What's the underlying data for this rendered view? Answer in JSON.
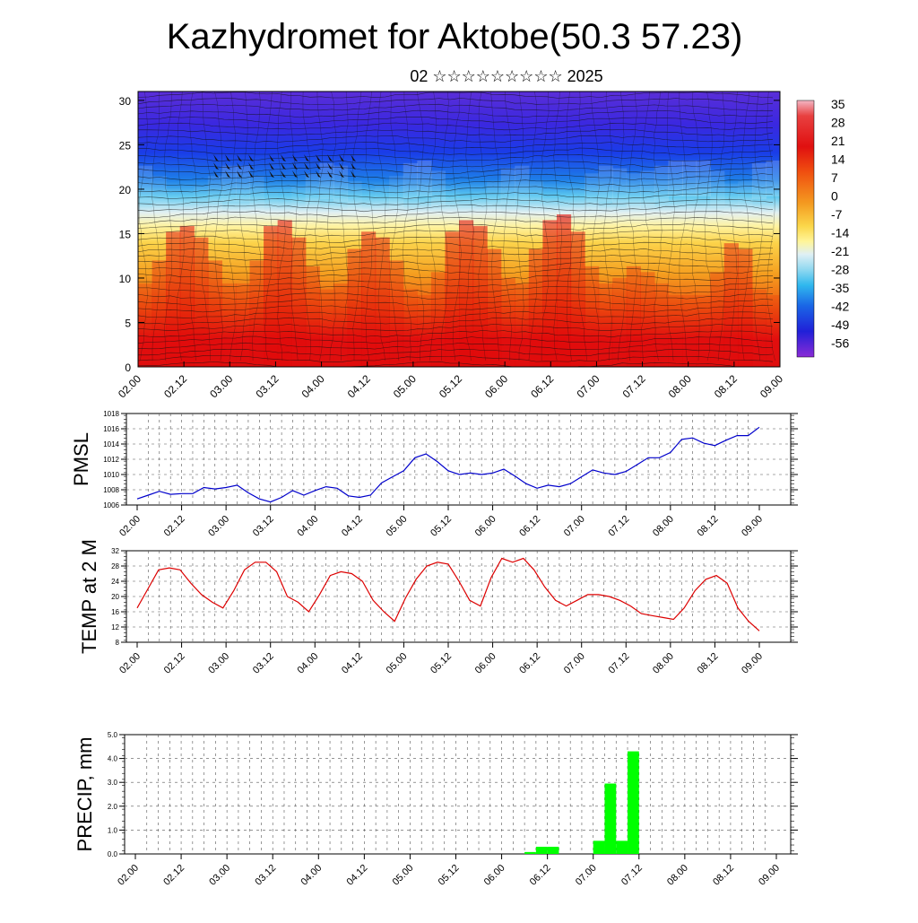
{
  "header": {
    "title": "Kazhydromet for Aktobe(50.3 57.23)",
    "subtitle": "02 ☆☆☆☆☆☆☆☆☆ 2025"
  },
  "chart_data": [
    {
      "type": "heatmap",
      "title": "Kazhydromet for Aktobe(50.3 57.23)",
      "subtitle": "02 ☆☆☆☆☆☆☆☆☆ 2025",
      "x_tick_labels": [
        "02.00",
        "02.12",
        "03.00",
        "03.12",
        "04.00",
        "04.12",
        "05.00",
        "05.12",
        "06.00",
        "06.12",
        "07.00",
        "07.12",
        "08.00",
        "08.12",
        "09.00"
      ],
      "y_ticks": [
        0,
        5,
        10,
        15,
        20,
        25,
        30
      ],
      "ylim": [
        0,
        31
      ],
      "colorbar_labels": [
        35,
        28,
        21,
        14,
        7,
        0,
        -7,
        -14,
        -21,
        -28,
        -35,
        -42,
        -49,
        -56
      ],
      "colorbar_range": [
        -63,
        38
      ],
      "surface_temperature_by_x": [
        18,
        22,
        27,
        28,
        26,
        22,
        18,
        18,
        22,
        28,
        29,
        26,
        21,
        17,
        18,
        24,
        27,
        26,
        22,
        17,
        16,
        20,
        27,
        29,
        28,
        24,
        19,
        18,
        24,
        29,
        30,
        27,
        21,
        18,
        19,
        21,
        20,
        18,
        16,
        14,
        15,
        20,
        25,
        24,
        17,
        12
      ],
      "wind_barbs": true
    },
    {
      "type": "line",
      "ylabel": "PMSL",
      "x_tick_labels": [
        "02.00",
        "02.12",
        "03.00",
        "03.12",
        "04.00",
        "04.12",
        "05.00",
        "05.12",
        "06.00",
        "06.12",
        "07.00",
        "07.12",
        "08.00",
        "08.12",
        "09.00"
      ],
      "y_ticks": [
        "1006",
        "1008",
        "1010",
        "1012",
        "1014",
        "1016",
        "1018"
      ],
      "ylim": [
        1006,
        1018
      ],
      "color": "#0000cc",
      "values": [
        1006.8,
        1007.3,
        1007.8,
        1007.4,
        1007.5,
        1007.5,
        1008.3,
        1008.1,
        1008.3,
        1008.6,
        1007.6,
        1006.8,
        1006.4,
        1007.0,
        1007.9,
        1007.3,
        1007.9,
        1008.4,
        1008.2,
        1007.2,
        1007.0,
        1007.3,
        1008.9,
        1009.7,
        1010.5,
        1012.2,
        1012.7,
        1011.7,
        1010.5,
        1010.0,
        1010.2,
        1010.0,
        1010.2,
        1010.7,
        1009.8,
        1008.8,
        1008.2,
        1008.6,
        1008.4,
        1008.8,
        1009.7,
        1010.6,
        1010.2,
        1010.0,
        1010.4,
        1011.3,
        1012.2,
        1012.2,
        1012.9,
        1014.6,
        1014.8,
        1014.1,
        1013.8,
        1014.5,
        1015.1,
        1015.1,
        1016.2
      ]
    },
    {
      "type": "line",
      "ylabel": "TEMP at 2 M",
      "x_tick_labels": [
        "02.00",
        "02.12",
        "03.00",
        "03.12",
        "04.00",
        "04.12",
        "05.00",
        "05.12",
        "06.00",
        "06.12",
        "07.00",
        "07.12",
        "08.00",
        "08.12",
        "09.00"
      ],
      "y_ticks": [
        "8",
        "12",
        "16",
        "20",
        "24",
        "28",
        "32"
      ],
      "ylim": [
        8,
        32
      ],
      "color": "#dd0000",
      "values": [
        17.0,
        22.0,
        27.0,
        27.5,
        27.0,
        23.5,
        20.5,
        18.5,
        17.0,
        21.5,
        27.0,
        29.0,
        29.0,
        26.5,
        20.0,
        18.5,
        16.0,
        20.5,
        25.5,
        26.5,
        26.0,
        24.0,
        19.0,
        16.0,
        13.5,
        19.5,
        24.5,
        28.0,
        29.0,
        28.5,
        24.0,
        19.0,
        17.5,
        25.0,
        30.0,
        29.0,
        30.0,
        27.0,
        22.5,
        19.0,
        17.5,
        19.0,
        20.5,
        20.5,
        20.0,
        19.0,
        17.5,
        15.5,
        15.0,
        14.5,
        14.0,
        17.0,
        21.5,
        24.5,
        25.5,
        23.5,
        17.0,
        13.5,
        11.0
      ]
    },
    {
      "type": "bar",
      "ylabel": "PRECIP, mm",
      "x_tick_labels": [
        "02.00",
        "02.12",
        "03.00",
        "03.12",
        "04.00",
        "04.12",
        "05.00",
        "05.12",
        "06.00",
        "06.12",
        "07.00",
        "07.12",
        "08.00",
        "08.12",
        "09.00"
      ],
      "y_ticks": [
        "0.0",
        "1.0",
        "2.0",
        "3.0",
        "4.0",
        "5.0"
      ],
      "ylim": [
        0,
        5
      ],
      "color": "#00ff00",
      "values": [
        0,
        0,
        0,
        0,
        0,
        0,
        0,
        0,
        0,
        0,
        0,
        0,
        0,
        0,
        0,
        0,
        0,
        0,
        0,
        0,
        0,
        0,
        0,
        0,
        0,
        0,
        0,
        0,
        0,
        0,
        0,
        0,
        0,
        0,
        0.08,
        0.3,
        0.3,
        0,
        0,
        0,
        0.55,
        2.95,
        0.55,
        4.3,
        0,
        0,
        0,
        0,
        0,
        0,
        0,
        0,
        0,
        0,
        0,
        0,
        0
      ]
    }
  ]
}
